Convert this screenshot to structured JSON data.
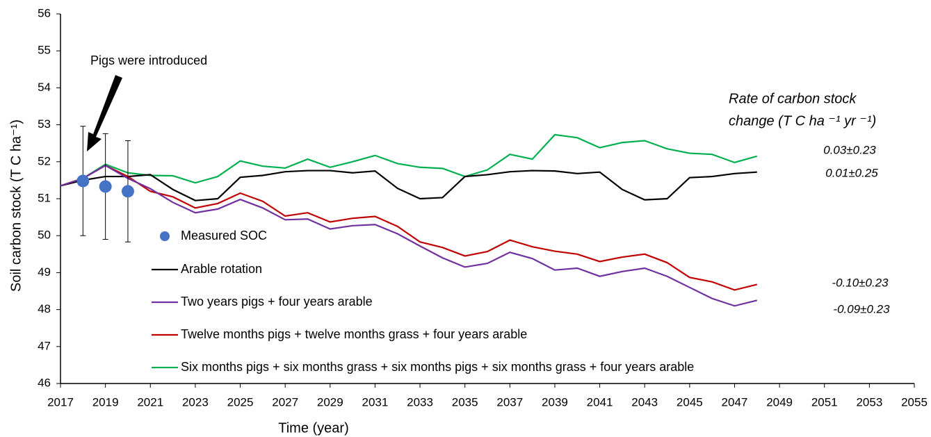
{
  "chart_data": {
    "type": "line",
    "xlabel": "Time (year)",
    "ylabel": "Soil carbon stock (T C ha⁻¹)",
    "xlim": [
      2017,
      2055
    ],
    "xticks": [
      2017,
      2019,
      2021,
      2023,
      2025,
      2027,
      2029,
      2031,
      2033,
      2035,
      2037,
      2039,
      2041,
      2043,
      2045,
      2047,
      2049,
      2051,
      2053,
      2055
    ],
    "ylim": [
      46,
      56
    ],
    "yticks": [
      46,
      47,
      48,
      49,
      50,
      51,
      52,
      53,
      54,
      55,
      56
    ],
    "grid": false,
    "x": [
      2017,
      2018,
      2019,
      2020,
      2021,
      2022,
      2023,
      2024,
      2025,
      2026,
      2027,
      2028,
      2029,
      2030,
      2031,
      2032,
      2033,
      2034,
      2035,
      2036,
      2037,
      2038,
      2039,
      2040,
      2041,
      2042,
      2043,
      2044,
      2045,
      2046,
      2047,
      2048
    ],
    "series": [
      {
        "name": "Arable rotation",
        "color": "#000000",
        "values": [
          51.35,
          51.5,
          51.6,
          51.6,
          51.65,
          51.25,
          50.95,
          51.0,
          51.58,
          51.63,
          51.73,
          51.76,
          51.76,
          51.7,
          51.75,
          51.28,
          51.0,
          51.03,
          51.6,
          51.65,
          51.73,
          51.76,
          51.75,
          51.68,
          51.72,
          51.25,
          50.97,
          51.0,
          51.57,
          51.6,
          51.68,
          51.72
        ]
      },
      {
        "name": "Two years pigs + four years arable",
        "color": "#7030a0",
        "values": [
          51.35,
          51.55,
          51.9,
          51.55,
          51.27,
          50.9,
          50.62,
          50.72,
          50.98,
          50.75,
          50.43,
          50.45,
          50.18,
          50.27,
          50.3,
          50.05,
          49.72,
          49.4,
          49.15,
          49.25,
          49.55,
          49.38,
          49.07,
          49.12,
          48.9,
          49.03,
          49.12,
          48.9,
          48.6,
          48.3,
          48.1,
          48.25
        ]
      },
      {
        "name": "Twelve months pigs + twelve months grass + four years arable",
        "color": "#c00000",
        "values": [
          51.35,
          51.55,
          51.9,
          51.6,
          51.2,
          51.05,
          50.75,
          50.87,
          51.15,
          50.93,
          50.53,
          50.62,
          50.37,
          50.47,
          50.52,
          50.25,
          49.83,
          49.68,
          49.45,
          49.57,
          49.88,
          49.7,
          49.58,
          49.5,
          49.3,
          49.42,
          49.5,
          49.27,
          48.87,
          48.75,
          48.53,
          48.68
        ]
      },
      {
        "name": "Six months pigs + six months grass + six months pigs + six months grass + four years arable",
        "color": "#00b050",
        "values": [
          51.35,
          51.55,
          51.93,
          51.7,
          51.63,
          51.62,
          51.43,
          51.6,
          52.02,
          51.88,
          51.83,
          52.07,
          51.85,
          52.0,
          52.17,
          51.95,
          51.85,
          51.82,
          51.6,
          51.78,
          52.2,
          52.07,
          52.73,
          52.65,
          52.38,
          52.52,
          52.57,
          52.35,
          52.23,
          52.2,
          51.98,
          52.15
        ]
      }
    ],
    "measured": {
      "name": "Measured SOC",
      "color": "#4472c4",
      "x": [
        2018,
        2019,
        2020
      ],
      "values": [
        51.48,
        51.33,
        51.2
      ],
      "errors": [
        1.48,
        1.43,
        1.37
      ]
    },
    "annotations": {
      "pigs": "Pigs were introduced",
      "rate_title": [
        "Rate of carbon stock",
        "change (T C ha ⁻¹ yr ⁻¹)"
      ],
      "rates": [
        "0.03±0.23",
        "0.01±0.25",
        "-0.10±0.23",
        "-0.09±0.23"
      ]
    }
  }
}
